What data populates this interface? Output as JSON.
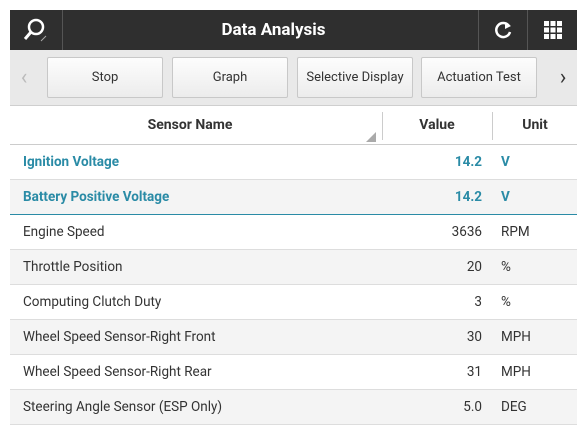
{
  "header": {
    "title": "Data Analysis"
  },
  "toolbar": {
    "buttons": [
      "Stop",
      "Graph",
      "Selective Display",
      "Actuation Test"
    ]
  },
  "table": {
    "columns": [
      "Sensor Name",
      "Value",
      "Unit"
    ],
    "rows": [
      [
        "Ignition Voltage",
        "14.2",
        "V"
      ],
      [
        "Battery Positive Voltage",
        "14.2",
        "V"
      ],
      [
        "Engine Speed",
        "3636",
        "RPM"
      ],
      [
        "Throttle Position",
        "20",
        "%"
      ],
      [
        "Computing Clutch Duty",
        "3",
        "%"
      ],
      [
        "Wheel Speed Sensor-Right Front",
        "30",
        "MPH"
      ],
      [
        "Wheel Speed Sensor-Right Rear",
        "31",
        "MPH"
      ],
      [
        "Steering Angle Sensor (ESP Only)",
        "5.0",
        "DEG"
      ]
    ]
  }
}
